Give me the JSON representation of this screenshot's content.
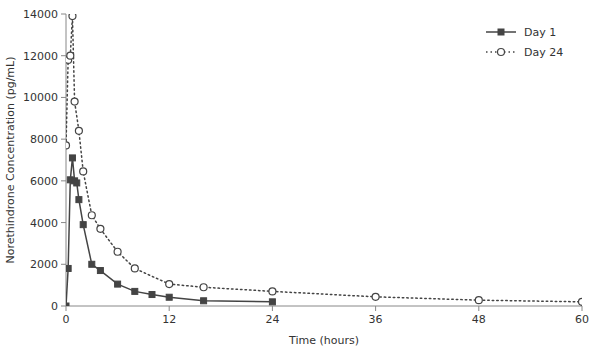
{
  "chart_data": {
    "type": "line",
    "xlabel": "Time (hours)",
    "ylabel": "Norethindrone Concentration (pg/mL)",
    "series": [
      {
        "name": "Day 1",
        "color": "#444444",
        "marker": "square",
        "line_style": "solid",
        "x": [
          0,
          0.25,
          0.5,
          0.75,
          1,
          1.25,
          1.5,
          2,
          3,
          4,
          6,
          8,
          10,
          12,
          16,
          24
        ],
        "values": [
          0,
          1800,
          6050,
          7100,
          6000,
          5900,
          5100,
          3900,
          2000,
          1700,
          1050,
          700,
          550,
          420,
          250,
          200
        ]
      },
      {
        "name": "Day 24",
        "color": "#444444",
        "marker": "circle",
        "line_style": "dotted",
        "x": [
          0,
          0.25,
          0.5,
          0.75,
          1,
          1.5,
          2,
          3,
          4,
          6,
          8,
          12,
          16,
          24,
          36,
          48,
          60
        ],
        "values": [
          7700,
          11800,
          12000,
          13900,
          9800,
          8400,
          6450,
          4350,
          3700,
          2600,
          1800,
          1050,
          900,
          700,
          440,
          280,
          200
        ]
      }
    ],
    "xlim": [
      0,
      60
    ],
    "ylim": [
      0,
      14000
    ],
    "xticks": [
      0,
      12,
      24,
      36,
      48,
      60
    ],
    "yticks": [
      0,
      2000,
      4000,
      6000,
      8000,
      10000,
      12000,
      14000
    ],
    "grid": false,
    "legend": "upper right"
  }
}
